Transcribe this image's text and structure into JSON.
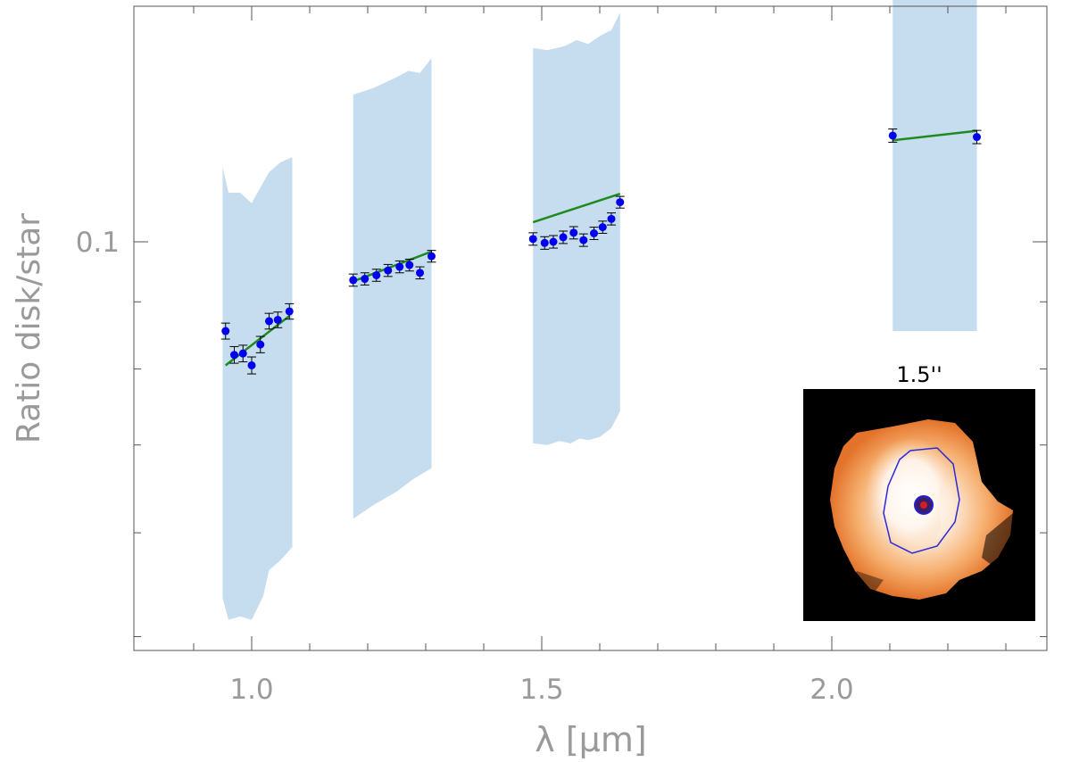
{
  "chart_data": {
    "type": "scatter",
    "xlabel": "λ [μm]",
    "ylabel": "Ratio disk/star",
    "xlim": [
      0.8,
      2.4
    ],
    "ylim": [
      0.04,
      0.2
    ],
    "y_scale": "log",
    "grid": false,
    "x_ticks": [
      1.0,
      1.5,
      2.0
    ],
    "x_tick_labels": [
      "1.0",
      "1.5",
      "2.0"
    ],
    "y_ticks": [
      0.1
    ],
    "y_tick_labels": [
      "0.1"
    ],
    "colors": {
      "band": "#c6dcef",
      "points": "#0000ee",
      "model": "#1f8a1f",
      "axes": "#555555",
      "ticklabels": "#9a9a9a"
    },
    "bands": [
      {
        "upper": [
          [
            0.95,
            0.114
          ],
          [
            0.96,
            0.109
          ],
          [
            0.98,
            0.109
          ],
          [
            1.0,
            0.107
          ],
          [
            1.02,
            0.111
          ],
          [
            1.03,
            0.113
          ],
          [
            1.05,
            0.115
          ],
          [
            1.07,
            0.116
          ]
        ],
        "lower": [
          [
            0.95,
            0.0535
          ],
          [
            0.96,
            0.0515
          ],
          [
            0.98,
            0.0518
          ],
          [
            1.0,
            0.0515
          ],
          [
            1.02,
            0.0537
          ],
          [
            1.03,
            0.0562
          ],
          [
            1.05,
            0.0572
          ],
          [
            1.07,
            0.0585
          ]
        ]
      },
      {
        "upper": [
          [
            1.175,
            0.1295
          ],
          [
            1.21,
            0.131
          ],
          [
            1.25,
            0.1335
          ],
          [
            1.27,
            0.135
          ],
          [
            1.29,
            0.1345
          ],
          [
            1.31,
            0.138
          ]
        ],
        "lower": [
          [
            1.175,
            0.0615
          ],
          [
            1.21,
            0.063
          ],
          [
            1.25,
            0.0645
          ],
          [
            1.28,
            0.066
          ],
          [
            1.31,
            0.0672
          ]
        ]
      },
      {
        "upper": [
          [
            1.485,
            0.1405
          ],
          [
            1.51,
            0.14
          ],
          [
            1.54,
            0.141
          ],
          [
            1.56,
            0.1425
          ],
          [
            1.58,
            0.1415
          ],
          [
            1.6,
            0.1435
          ],
          [
            1.62,
            0.145
          ],
          [
            1.635,
            0.1495
          ]
        ],
        "lower": [
          [
            1.485,
            0.0702
          ],
          [
            1.51,
            0.07
          ],
          [
            1.53,
            0.0705
          ],
          [
            1.55,
            0.0702
          ],
          [
            1.565,
            0.0708
          ],
          [
            1.58,
            0.0706
          ],
          [
            1.6,
            0.071
          ],
          [
            1.62,
            0.0721
          ],
          [
            1.635,
            0.0743
          ]
        ]
      },
      {
        "upper": [
          [
            2.105,
            0.168
          ],
          [
            2.25,
            0.1675
          ]
        ],
        "lower": [
          [
            2.105,
            0.0855
          ],
          [
            2.25,
            0.0855
          ]
        ]
      }
    ],
    "series": [
      {
        "type": "points",
        "x": [
          0.955,
          0.97,
          0.985,
          1.0,
          1.015,
          1.03,
          1.045,
          1.065,
          1.175,
          1.195,
          1.215,
          1.235,
          1.255,
          1.272,
          1.29,
          1.31,
          1.485,
          1.505,
          1.52,
          1.537,
          1.555,
          1.572,
          1.59,
          1.605,
          1.62,
          1.635
        ],
        "y": [
          0.0855,
          0.082,
          0.0822,
          0.0805,
          0.0835,
          0.087,
          0.0872,
          0.0885,
          0.0935,
          0.0937,
          0.0943,
          0.0951,
          0.0957,
          0.096,
          0.0947,
          0.0975,
          0.1005,
          0.0998,
          0.1,
          0.1008,
          0.1016,
          0.1003,
          0.1015,
          0.1026,
          0.1041,
          0.1072
        ],
        "yerr": [
          0.0012,
          0.0012,
          0.0012,
          0.0012,
          0.0012,
          0.0012,
          0.0012,
          0.0012,
          0.001,
          0.001,
          0.001,
          0.001,
          0.001,
          0.001,
          0.001,
          0.001,
          0.0011,
          0.0011,
          0.0011,
          0.0011,
          0.0011,
          0.0011,
          0.0011,
          0.0011,
          0.0011,
          0.0011
        ]
      },
      {
        "type": "points",
        "x": [
          2.105,
          2.25
        ],
        "y": [
          0.1205,
          0.1202
        ],
        "yerr": [
          0.0014,
          0.0014
        ]
      }
    ],
    "model_lines": [
      {
        "x": [
          0.955,
          1.065
        ],
        "y": [
          0.0805,
          0.0878
        ]
      },
      {
        "x": [
          1.175,
          1.31
        ],
        "y": [
          0.0933,
          0.0983
        ]
      },
      {
        "x": [
          1.485,
          1.635
        ],
        "y": [
          0.1035,
          0.1088
        ]
      },
      {
        "x": [
          2.105,
          2.25
        ],
        "y": [
          0.1195,
          0.1215
        ]
      }
    ],
    "inset": {
      "title": "1.5''",
      "image": "disk-image-icon"
    }
  }
}
